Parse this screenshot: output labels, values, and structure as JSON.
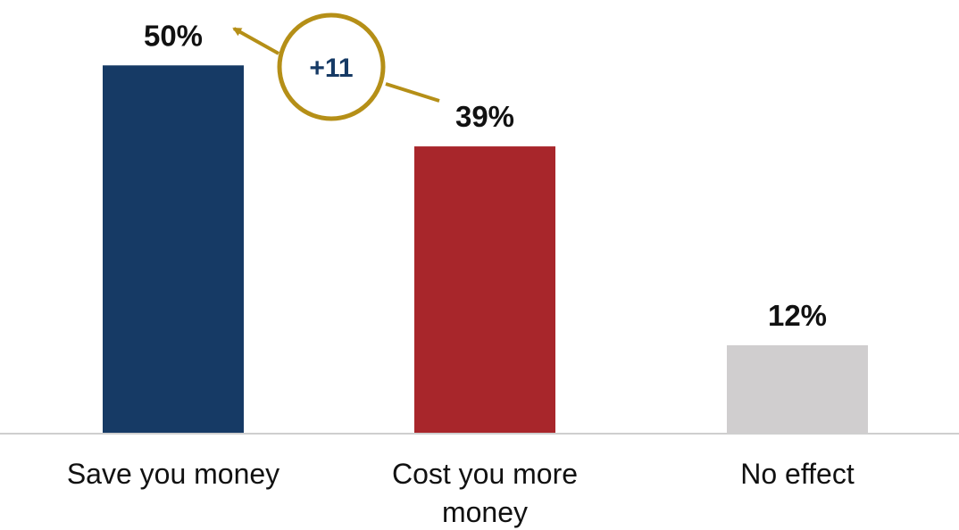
{
  "chart_data": {
    "type": "bar",
    "categories": [
      "Save you money",
      "Cost you more money",
      "No effect"
    ],
    "category_lines": [
      [
        "Save you money"
      ],
      [
        "Cost you more",
        "money"
      ],
      [
        "No effect"
      ]
    ],
    "values": [
      50,
      39,
      12
    ],
    "value_labels": [
      "50%",
      "39%",
      "12%"
    ],
    "bar_colors": [
      "#163a65",
      "#a8262b",
      "#d0cecf"
    ],
    "ylim": [
      0,
      55
    ],
    "grid": false,
    "legend": "none",
    "annotation": {
      "text": "+11",
      "between": [
        "Save you money",
        "Cost you more money"
      ],
      "circle_color": "#b58f17",
      "text_color": "#163a65"
    }
  }
}
